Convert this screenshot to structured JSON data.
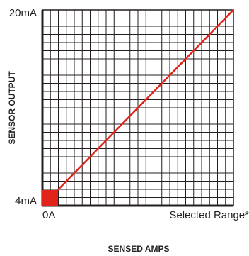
{
  "chart_data": {
    "type": "line",
    "xlabel": "SENSED AMPS",
    "ylabel": "SENSOR OUTPUT",
    "x_tick_labels": [
      "0A",
      "Selected Range*"
    ],
    "y_tick_labels": [
      "20mA",
      "4mA"
    ],
    "x": [
      0,
      1
    ],
    "ylim": [
      4,
      20
    ],
    "xlim": [
      0,
      1
    ],
    "series": [
      {
        "values": [
          4,
          20
        ],
        "color": "#e2231a"
      }
    ],
    "marker_at_origin": true,
    "grid": true,
    "colors": {
      "line": "#e2231a",
      "grid": "#231f20",
      "marker": "#e2231a"
    }
  }
}
